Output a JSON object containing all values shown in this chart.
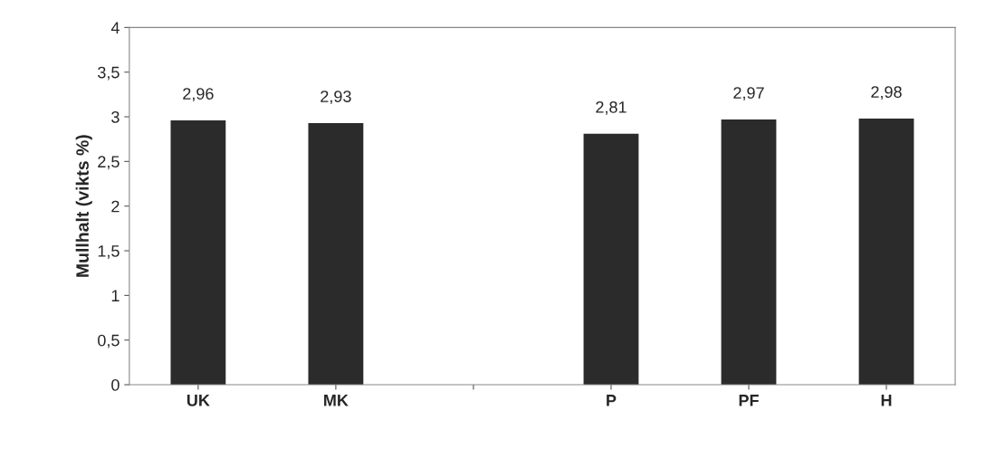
{
  "chart_data": {
    "type": "bar",
    "ylabel": "Mullhalt (vikts %)",
    "categories": [
      "UK",
      "MK",
      null,
      "P",
      "PF",
      "H"
    ],
    "values": [
      2.96,
      2.93,
      null,
      2.81,
      2.97,
      2.98
    ],
    "value_labels": [
      "2,96",
      "2,93",
      null,
      "2,81",
      "2,97",
      "2,98"
    ],
    "color": "#2b2b2b",
    "ylim": [
      0,
      4
    ],
    "yticks": [
      0,
      {
        "value": 0.5,
        "label": "0,5"
      },
      1,
      {
        "value": 1.5,
        "label": "1,5"
      },
      2,
      {
        "value": 2.5,
        "label": "2,5"
      },
      3,
      {
        "value": 3.5,
        "label": "3,5"
      },
      4
    ],
    "grid": false
  }
}
